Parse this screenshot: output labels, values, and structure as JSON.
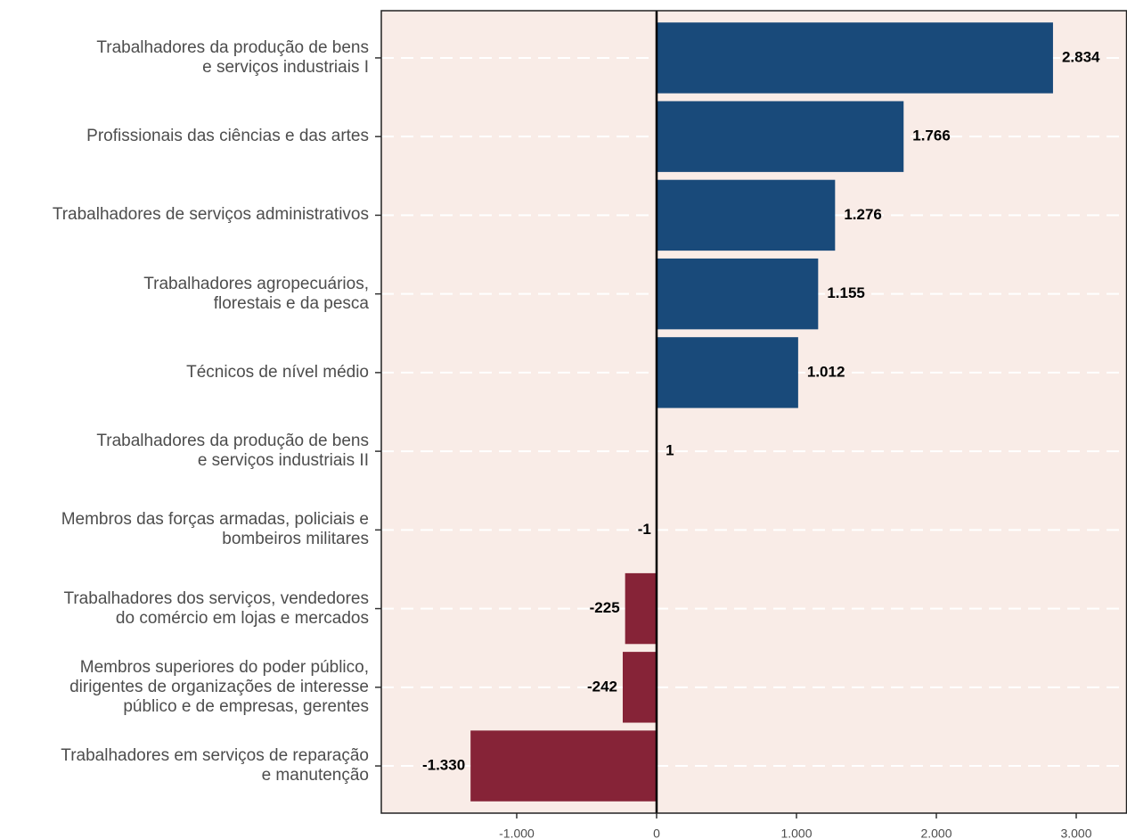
{
  "chart_data": {
    "type": "barh",
    "categories": [
      "Trabalhadores da produção de bens\ne serviços industriais I",
      "Profissionais das ciências e das artes",
      "Trabalhadores de serviços administrativos",
      "Trabalhadores agropecuários,\nflorestais e da pesca",
      "Técnicos de nível médio",
      "Trabalhadores da produção de bens\ne serviços industriais II",
      "Membros das forças armadas, policiais e\nbombeiros militares",
      "Trabalhadores dos serviços, vendedores\ndo comércio em lojas e mercados",
      "Membros superiores do poder público,\ndirigentes de organizações de interesse\npúblico e de empresas, gerentes",
      "Trabalhadores em serviços de reparação\ne manutenção"
    ],
    "values": [
      2834,
      1766,
      1276,
      1155,
      1012,
      1,
      -1,
      -225,
      -242,
      -1330
    ],
    "value_labels": [
      "2.834",
      "1.766",
      "1.276",
      "1.155",
      "1.012",
      "1",
      "-1",
      "-225",
      "-242",
      "-1.330"
    ],
    "positive_color": "#194a7a",
    "negative_color": "#862337",
    "xlim": [
      -1968,
      3363
    ],
    "xticks": [
      {
        "value": -1000,
        "label": "-1.000"
      },
      0,
      {
        "value": 1000,
        "label": "1.000"
      },
      {
        "value": 2000,
        "label": "2.000"
      },
      {
        "value": 3000,
        "label": "3.000"
      }
    ],
    "grid": true
  }
}
